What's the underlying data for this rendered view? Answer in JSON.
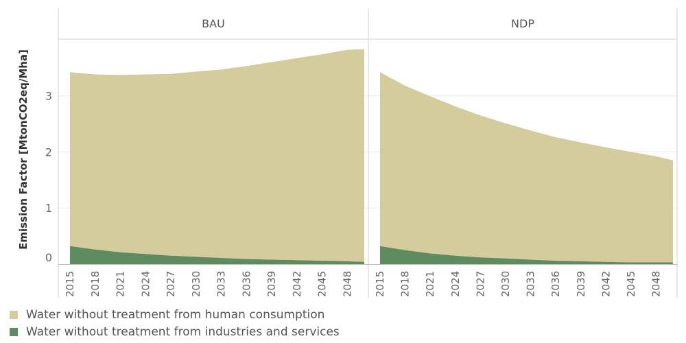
{
  "chart_data": {
    "type": "area",
    "stacked": true,
    "ylabel": "Emission Factor [MtonCO2eq/Mha]",
    "ylim": [
      0,
      4
    ],
    "yticks": [
      0,
      1,
      2,
      3
    ],
    "xticks": [
      "2015",
      "2018",
      "2021",
      "2024",
      "2027",
      "2030",
      "2033",
      "2036",
      "2039",
      "2042",
      "2045",
      "2048"
    ],
    "x": [
      "2015",
      "2018",
      "2021",
      "2024",
      "2027",
      "2030",
      "2033",
      "2036",
      "2039",
      "2042",
      "2045",
      "2048",
      "2050"
    ],
    "colors": {
      "human": "#d4cc9c",
      "industry": "#5f8b61"
    },
    "legend": {
      "position": "bottom-left",
      "items": [
        {
          "key": "human",
          "label": "Water without treatment from human consumption"
        },
        {
          "key": "industry",
          "label": "Water without treatment from industries and services"
        }
      ]
    },
    "panels": [
      {
        "title": "BAU",
        "series": [
          {
            "name": "Water without treatment from industries and services",
            "values": [
              0.32,
              0.26,
              0.21,
              0.18,
              0.15,
              0.13,
              0.11,
              0.09,
              0.08,
              0.07,
              0.06,
              0.05,
              0.04
            ]
          },
          {
            "name": "Water without treatment from human consumption",
            "values": [
              3.1,
              3.12,
              3.16,
              3.2,
              3.24,
              3.3,
              3.36,
              3.44,
              3.52,
              3.6,
              3.68,
              3.77,
              3.79
            ]
          }
        ]
      },
      {
        "title": "NDP",
        "series": [
          {
            "name": "Water without treatment from industries and services",
            "values": [
              0.32,
              0.25,
              0.19,
              0.15,
              0.12,
              0.1,
              0.08,
              0.06,
              0.05,
              0.04,
              0.03,
              0.03,
              0.03
            ]
          },
          {
            "name": "Water without treatment from human consumption",
            "values": [
              3.1,
              2.93,
              2.8,
              2.66,
              2.53,
              2.41,
              2.3,
              2.2,
              2.12,
              2.04,
              1.97,
              1.89,
              1.82
            ]
          }
        ]
      }
    ]
  }
}
